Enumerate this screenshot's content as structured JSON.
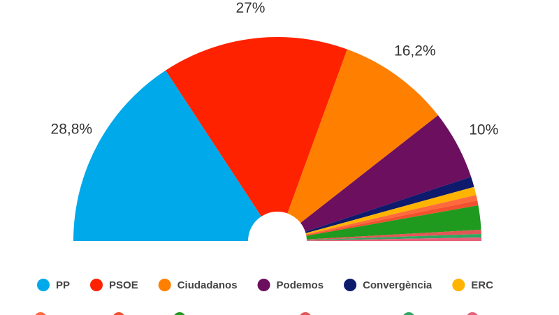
{
  "chart_data": {
    "type": "pie",
    "semicircle": true,
    "categories": [
      "PP",
      "PSOE",
      "Ciudadanos",
      "Podemos",
      "Convergència",
      "ERC",
      null,
      null,
      null,
      null,
      null,
      null
    ],
    "values": [
      28.8,
      27,
      16.2,
      10,
      1.5,
      1.2,
      0.8,
      0.7,
      3.5,
      0.6,
      0.5,
      0.5
    ],
    "value_labels": [
      "28,8%",
      "27%",
      "16,2%",
      "10%",
      null,
      null,
      null,
      null,
      null,
      null,
      null,
      null
    ],
    "colors": [
      "#00a9ea",
      "#ff2200",
      "#ff7f00",
      "#6c0f5f",
      "#0e1a6c",
      "#ffb400",
      "#ff6a3d",
      "#f2502e",
      "#1f9a1f",
      "#e45656",
      "#2ca862",
      "#e8607a"
    ],
    "legend": "bottom"
  }
}
